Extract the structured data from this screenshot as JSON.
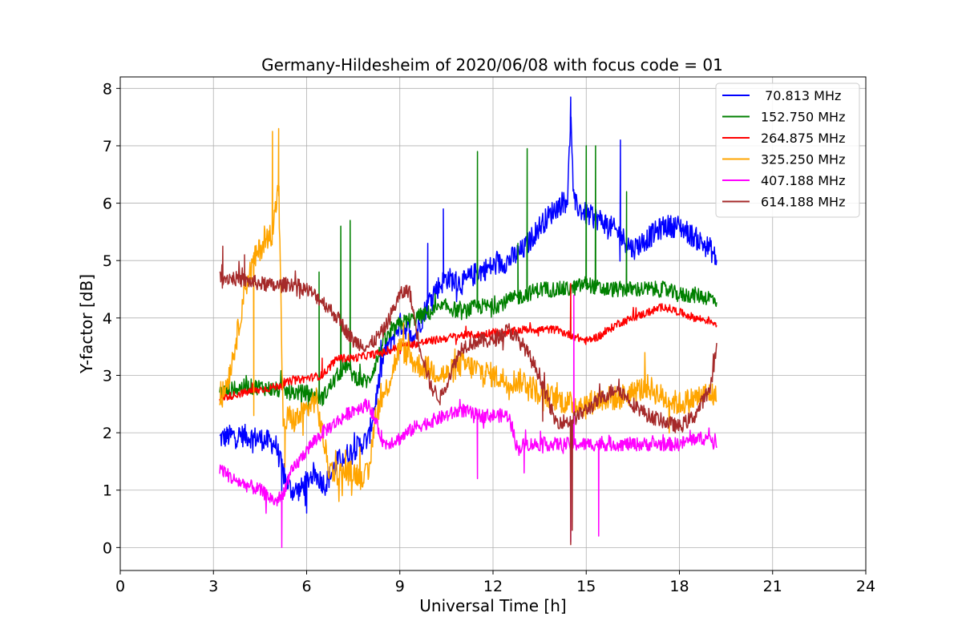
{
  "chart_data": {
    "type": "line",
    "title": "Germany-Hildesheim of 2020/06/08 with focus code = 01",
    "xlabel": "Universal Time [h]",
    "ylabel": "Y-factor [dB]",
    "xlim": [
      0,
      24
    ],
    "ylim": [
      -0.4,
      8.2
    ],
    "xticks": [
      0,
      3,
      6,
      9,
      12,
      15,
      18,
      21,
      24
    ],
    "yticks": [
      0,
      1,
      2,
      3,
      4,
      5,
      6,
      7,
      8
    ],
    "grid": true,
    "legend_position": "top-right",
    "series": [
      {
        "name": " 70.813 MHz",
        "color": "#0000ff",
        "noise": 0.2,
        "x": [
          3.2,
          3.6,
          4.0,
          4.5,
          5.0,
          5.3,
          5.5,
          5.8,
          6.2,
          6.6,
          7.0,
          7.5,
          8.0,
          8.2,
          8.5,
          9.0,
          9.5,
          10.0,
          10.5,
          11.0,
          11.5,
          12.0,
          12.5,
          13.0,
          13.5,
          14.0,
          14.4,
          14.5,
          14.6,
          15.0,
          15.5,
          16.0,
          16.5,
          17.0,
          17.5,
          18.0,
          18.5,
          19.0,
          19.2
        ],
        "y": [
          1.9,
          1.95,
          1.95,
          1.9,
          1.8,
          1.2,
          1.0,
          1.0,
          1.3,
          1.1,
          1.5,
          1.7,
          1.9,
          2.5,
          3.4,
          3.9,
          3.7,
          4.4,
          4.7,
          4.6,
          4.8,
          4.9,
          5.0,
          5.2,
          5.6,
          5.9,
          6.1,
          7.5,
          6.0,
          5.8,
          5.7,
          5.5,
          5.2,
          5.4,
          5.6,
          5.6,
          5.4,
          5.2,
          5.0
        ],
        "spikes": [
          [
            5.2,
            0.9
          ],
          [
            9.9,
            5.3
          ],
          [
            10.4,
            5.9
          ],
          [
            14.5,
            7.85
          ],
          [
            16.1,
            7.1
          ],
          [
            6.0,
            0.6
          ]
        ]
      },
      {
        "name": "152.750 MHz",
        "color": "#008000",
        "noise": 0.14,
        "x": [
          3.2,
          3.6,
          4.0,
          4.5,
          5.0,
          5.5,
          6.0,
          6.5,
          7.0,
          7.3,
          7.5,
          7.8,
          8.0,
          8.5,
          9.0,
          9.5,
          10.0,
          10.5,
          11.0,
          11.5,
          12.0,
          12.5,
          13.0,
          13.5,
          14.0,
          14.5,
          15.0,
          15.5,
          16.0,
          16.5,
          17.0,
          17.5,
          18.0,
          18.5,
          19.0,
          19.2
        ],
        "y": [
          2.7,
          2.75,
          2.8,
          2.8,
          2.75,
          2.7,
          2.7,
          2.6,
          3.0,
          3.2,
          3.0,
          2.9,
          2.9,
          3.6,
          3.9,
          4.0,
          4.1,
          4.2,
          4.1,
          4.2,
          4.2,
          4.3,
          4.4,
          4.5,
          4.5,
          4.5,
          4.6,
          4.5,
          4.5,
          4.5,
          4.5,
          4.5,
          4.4,
          4.4,
          4.35,
          4.3
        ],
        "spikes": [
          [
            7.1,
            5.6
          ],
          [
            7.4,
            5.7
          ],
          [
            11.5,
            6.9
          ],
          [
            13.1,
            6.95
          ],
          [
            15.0,
            7.0
          ],
          [
            15.3,
            7.0
          ],
          [
            16.3,
            6.2
          ],
          [
            6.4,
            4.8
          ],
          [
            12.8,
            5.3
          ]
        ]
      },
      {
        "name": "264.875 MHz",
        "color": "#ff0000",
        "noise": 0.07,
        "x": [
          3.2,
          4.0,
          5.0,
          5.5,
          6.0,
          6.5,
          7.0,
          7.5,
          8.0,
          8.5,
          9.0,
          9.5,
          10.0,
          10.5,
          11.0,
          11.5,
          12.0,
          12.5,
          13.0,
          13.5,
          14.0,
          14.5,
          15.0,
          15.5,
          16.0,
          16.5,
          17.0,
          17.5,
          18.0,
          18.5,
          19.0,
          19.2
        ],
        "y": [
          2.6,
          2.7,
          2.8,
          2.9,
          2.95,
          3.0,
          3.3,
          3.3,
          3.35,
          3.4,
          3.5,
          3.55,
          3.6,
          3.65,
          3.7,
          3.7,
          3.75,
          3.75,
          3.8,
          3.8,
          3.8,
          3.7,
          3.6,
          3.7,
          3.9,
          4.0,
          4.1,
          4.2,
          4.1,
          4.0,
          3.95,
          3.9
        ],
        "spikes": [
          [
            6.5,
            3.3
          ],
          [
            14.5,
            4.6
          ]
        ]
      },
      {
        "name": "325.250 MHz",
        "color": "#ffa500",
        "noise": 0.22,
        "x": [
          3.2,
          3.5,
          3.8,
          4.0,
          4.3,
          4.6,
          4.9,
          5.1,
          5.25,
          5.4,
          5.6,
          6.0,
          6.3,
          6.7,
          7.0,
          7.5,
          8.0,
          8.2,
          8.6,
          9.0,
          9.5,
          10.0,
          10.5,
          11.0,
          11.5,
          12.0,
          12.5,
          13.0,
          13.5,
          14.0,
          14.5,
          15.0,
          15.5,
          16.0,
          16.5,
          17.0,
          17.5,
          18.0,
          18.5,
          19.0,
          19.2
        ],
        "y": [
          2.5,
          3.0,
          3.8,
          4.5,
          5.0,
          5.3,
          5.5,
          6.3,
          2.0,
          2.3,
          2.2,
          2.4,
          2.6,
          1.4,
          1.3,
          1.3,
          1.25,
          2.3,
          2.8,
          3.5,
          3.2,
          3.1,
          3.0,
          3.2,
          3.1,
          3.0,
          2.9,
          2.9,
          2.7,
          2.6,
          2.5,
          2.5,
          2.6,
          2.6,
          2.7,
          2.8,
          2.6,
          2.5,
          2.6,
          2.7,
          2.6
        ],
        "spikes": [
          [
            4.9,
            7.25
          ],
          [
            5.1,
            7.3
          ],
          [
            4.3,
            2.3
          ],
          [
            5.3,
            1.4
          ]
        ]
      },
      {
        "name": "407.188 MHz",
        "color": "#ff00ff",
        "noise": 0.12,
        "x": [
          3.2,
          3.6,
          4.0,
          4.5,
          5.0,
          5.2,
          5.5,
          6.0,
          6.5,
          7.0,
          7.5,
          8.0,
          8.5,
          9.0,
          9.5,
          10.0,
          10.5,
          11.0,
          11.5,
          12.0,
          12.5,
          12.8,
          13.0,
          13.5,
          14.0,
          14.5,
          15.0,
          15.5,
          16.0,
          16.5,
          17.0,
          17.5,
          18.0,
          18.5,
          19.0,
          19.2
        ],
        "y": [
          1.4,
          1.2,
          1.1,
          1.0,
          0.8,
          0.9,
          1.3,
          1.7,
          2.0,
          2.2,
          2.4,
          2.5,
          1.8,
          1.9,
          2.1,
          2.2,
          2.3,
          2.4,
          2.3,
          2.3,
          2.3,
          1.7,
          1.8,
          1.8,
          1.8,
          1.8,
          1.8,
          1.8,
          1.8,
          1.8,
          1.8,
          1.8,
          1.8,
          1.9,
          1.9,
          1.85
        ],
        "spikes": [
          [
            5.2,
            0.0
          ],
          [
            14.5,
            0.1
          ],
          [
            15.4,
            0.2
          ],
          [
            14.6,
            4.4
          ],
          [
            11.5,
            1.2
          ],
          [
            13.0,
            1.3
          ]
        ]
      },
      {
        "name": "614.188 MHz",
        "color": "#a52a2a",
        "noise": 0.13,
        "x": [
          3.2,
          3.6,
          4.0,
          4.5,
          5.0,
          5.5,
          6.0,
          6.5,
          7.0,
          7.5,
          8.0,
          8.5,
          9.0,
          9.3,
          9.6,
          10.0,
          10.3,
          10.6,
          11.0,
          11.5,
          12.0,
          12.5,
          13.0,
          13.5,
          14.0,
          14.5,
          15.0,
          15.5,
          16.0,
          16.5,
          17.0,
          17.5,
          18.0,
          18.5,
          19.0,
          19.2
        ],
        "y": [
          4.7,
          4.7,
          4.65,
          4.6,
          4.55,
          4.6,
          4.5,
          4.3,
          4.0,
          3.6,
          3.5,
          3.8,
          4.4,
          4.5,
          3.6,
          2.8,
          2.6,
          3.0,
          3.5,
          3.6,
          3.6,
          3.8,
          3.5,
          3.0,
          2.2,
          2.2,
          2.4,
          2.6,
          2.8,
          2.5,
          2.3,
          2.2,
          2.1,
          2.3,
          2.8,
          3.5
        ],
        "spikes": [
          [
            3.3,
            5.25
          ],
          [
            14.5,
            0.05
          ],
          [
            14.55,
            0.3
          ],
          [
            4.0,
            5.1
          ],
          [
            13.6,
            2.2
          ]
        ]
      }
    ]
  }
}
